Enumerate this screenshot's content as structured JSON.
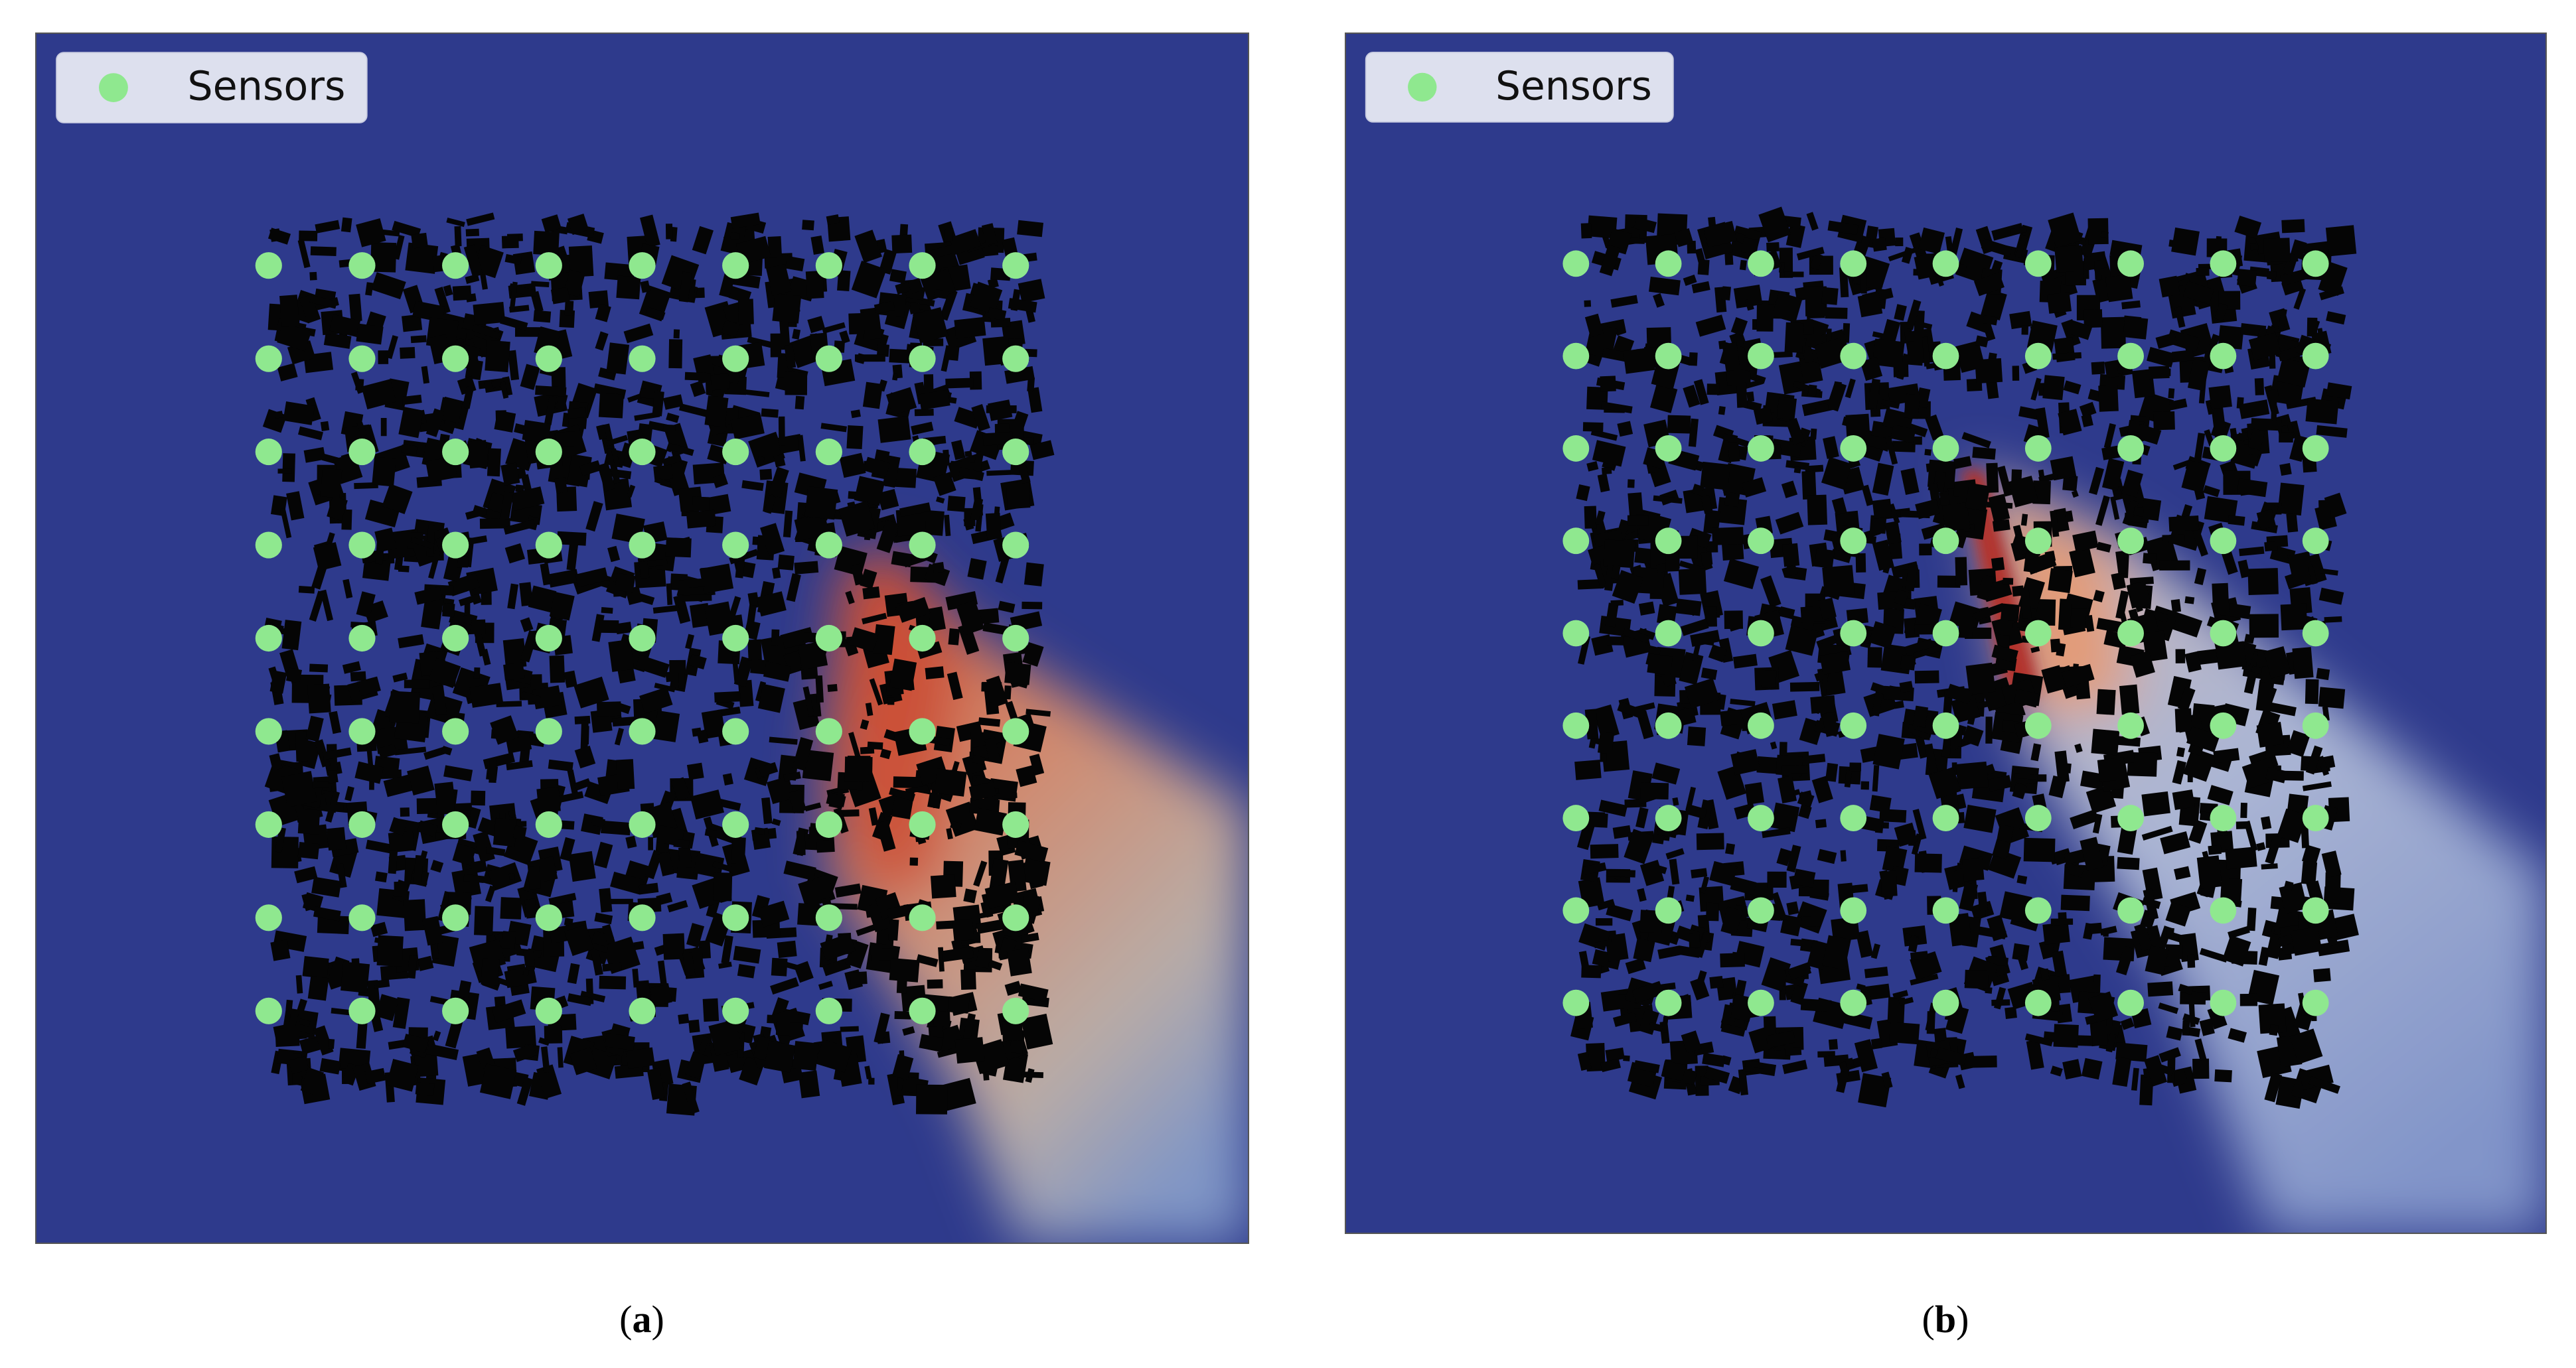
{
  "panels": [
    {
      "legend": "Sensors",
      "caption": [
        "(",
        "a",
        ")"
      ]
    },
    {
      "legend": "Sensors",
      "caption": [
        "(",
        "b",
        ")"
      ]
    }
  ]
}
